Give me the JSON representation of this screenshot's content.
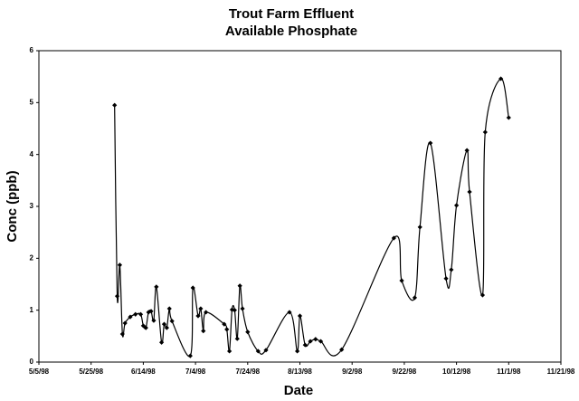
{
  "chart_data": {
    "type": "line",
    "title": [
      "Trout Farm Effluent",
      "Available Phosphate"
    ],
    "x_label": "Date",
    "y_label": "Conc (ppb)",
    "x": [
      "1998-06-03",
      "1998-06-04",
      "1998-06-05",
      "1998-06-06",
      "1998-06-07",
      "1998-06-09",
      "1998-06-11",
      "1998-06-13",
      "1998-06-14",
      "1998-06-15",
      "1998-06-16",
      "1998-06-17",
      "1998-06-18",
      "1998-06-19",
      "1998-06-21",
      "1998-06-22",
      "1998-06-23",
      "1998-06-24",
      "1998-06-25",
      "1998-07-02",
      "1998-07-03",
      "1998-07-05",
      "1998-07-06",
      "1998-07-07",
      "1998-07-08",
      "1998-07-15",
      "1998-07-16",
      "1998-07-17",
      "1998-07-18",
      "1998-07-19",
      "1998-07-20",
      "1998-07-21",
      "1998-07-22",
      "1998-07-24",
      "1998-07-28",
      "1998-07-31",
      "1998-08-09",
      "1998-08-12",
      "1998-08-13",
      "1998-08-15",
      "1998-08-17",
      "1998-08-19",
      "1998-08-21",
      "1998-08-29",
      "1998-09-18",
      "1998-09-21",
      "1998-09-26",
      "1998-09-28",
      "1998-10-02",
      "1998-10-08",
      "1998-10-10",
      "1998-10-12",
      "1998-10-16",
      "1998-10-17",
      "1998-10-22",
      "1998-10-23",
      "1998-10-29",
      "1998-11-01"
    ],
    "series": [
      {
        "name": "Available Phosphate",
        "color": "#000000",
        "values": [
          4.95,
          1.27,
          1.87,
          0.54,
          0.75,
          0.87,
          0.92,
          0.92,
          0.7,
          0.66,
          0.96,
          0.98,
          0.8,
          1.45,
          0.38,
          0.73,
          0.66,
          1.03,
          0.79,
          0.12,
          1.43,
          0.89,
          1.03,
          0.6,
          0.96,
          0.73,
          0.63,
          0.21,
          1.01,
          1.0,
          0.45,
          1.47,
          1.03,
          0.58,
          0.21,
          0.23,
          0.96,
          0.21,
          0.89,
          0.33,
          0.4,
          0.44,
          0.4,
          0.24,
          2.39,
          1.57,
          1.24,
          2.6,
          4.22,
          1.61,
          1.78,
          3.02,
          4.08,
          3.28,
          1.29,
          4.43,
          5.46,
          4.71
        ]
      }
    ],
    "xlim": [
      "1998-05-05",
      "1998-11-21"
    ],
    "xticks": [
      {
        "value": "1998-05-05",
        "label": "5/5/98"
      },
      {
        "value": "1998-05-25",
        "label": "5/25/98"
      },
      {
        "value": "1998-06-14",
        "label": "6/14/98"
      },
      {
        "value": "1998-07-04",
        "label": "7/4/98"
      },
      {
        "value": "1998-07-24",
        "label": "7/24/98"
      },
      {
        "value": "1998-08-13",
        "label": "8/13/98"
      },
      {
        "value": "1998-09-02",
        "label": "9/2/98"
      },
      {
        "value": "1998-09-22",
        "label": "9/22/98"
      },
      {
        "value": "1998-10-12",
        "label": "10/12/98"
      },
      {
        "value": "1998-11-01",
        "label": "11/1/98"
      },
      {
        "value": "1998-11-21",
        "label": "11/21/98"
      }
    ],
    "ylim": [
      0,
      6
    ],
    "yticks": [
      0,
      1,
      2,
      3,
      4,
      5,
      6
    ],
    "grid": false
  }
}
